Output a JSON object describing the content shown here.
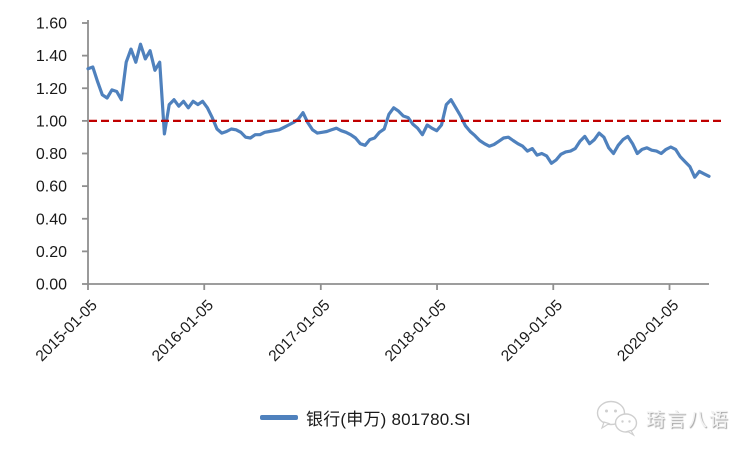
{
  "chart_data": {
    "type": "line",
    "title": "",
    "grid": false,
    "legend_position": "bottom-center",
    "series": [
      {
        "name": "银行(申万) 801780.SI",
        "color": "#4f81bd",
        "start_date": "2015-01-05",
        "interval_days": 15,
        "values": [
          1.32,
          1.33,
          1.24,
          1.16,
          1.14,
          1.19,
          1.18,
          1.13,
          1.36,
          1.44,
          1.36,
          1.47,
          1.38,
          1.43,
          1.31,
          1.36,
          0.92,
          1.1,
          1.13,
          1.09,
          1.12,
          1.08,
          1.12,
          1.1,
          1.12,
          1.08,
          1.02,
          0.95,
          0.925,
          0.935,
          0.95,
          0.945,
          0.93,
          0.9,
          0.895,
          0.915,
          0.915,
          0.93,
          0.935,
          0.94,
          0.945,
          0.96,
          0.975,
          0.99,
          1.01,
          1.05,
          0.99,
          0.945,
          0.925,
          0.93,
          0.935,
          0.945,
          0.955,
          0.94,
          0.93,
          0.915,
          0.895,
          0.86,
          0.85,
          0.885,
          0.895,
          0.93,
          0.95,
          1.04,
          1.08,
          1.06,
          1.03,
          1.02,
          0.98,
          0.955,
          0.915,
          0.975,
          0.955,
          0.94,
          0.975,
          1.1,
          1.13,
          1.08,
          1.03,
          0.97,
          0.935,
          0.91,
          0.88,
          0.86,
          0.845,
          0.855,
          0.875,
          0.895,
          0.9,
          0.88,
          0.86,
          0.845,
          0.815,
          0.83,
          0.79,
          0.8,
          0.785,
          0.74,
          0.76,
          0.795,
          0.81,
          0.815,
          0.83,
          0.875,
          0.905,
          0.86,
          0.885,
          0.925,
          0.9,
          0.835,
          0.8,
          0.85,
          0.885,
          0.905,
          0.86,
          0.8,
          0.825,
          0.835,
          0.82,
          0.815,
          0.8,
          0.825,
          0.84,
          0.825,
          0.78,
          0.75,
          0.72,
          0.655,
          0.69,
          0.675,
          0.66
        ]
      }
    ],
    "reference_line": {
      "value": 1.0,
      "color": "#c00000",
      "style": "dashed"
    },
    "y_axis": {
      "min": 0.0,
      "max": 1.6,
      "tick_step": 0.2,
      "tick_labels": [
        "0.00",
        "0.20",
        "0.40",
        "0.60",
        "0.80",
        "1.00",
        "1.20",
        "1.40",
        "1.60"
      ]
    },
    "x_axis": {
      "tick_labels": [
        "2015-01-05",
        "2016-01-05",
        "2017-01-05",
        "2018-01-05",
        "2019-01-05",
        "2020-01-05"
      ],
      "tick_day_offsets": [
        0,
        365,
        731,
        1096,
        1461,
        1826
      ],
      "label_rotation_deg": -45
    },
    "legend": {
      "label": "银行(申万) 801780.SI"
    }
  },
  "watermark": {
    "text": "琦言八语",
    "icon": "wechat-icon"
  },
  "colors": {
    "series_blue": "#4f81bd",
    "reference_red": "#c00000",
    "axis_gray": "#8f8f8f",
    "label_dark": "#1a1a1a",
    "watermark_gray": "#cfcfcf"
  }
}
